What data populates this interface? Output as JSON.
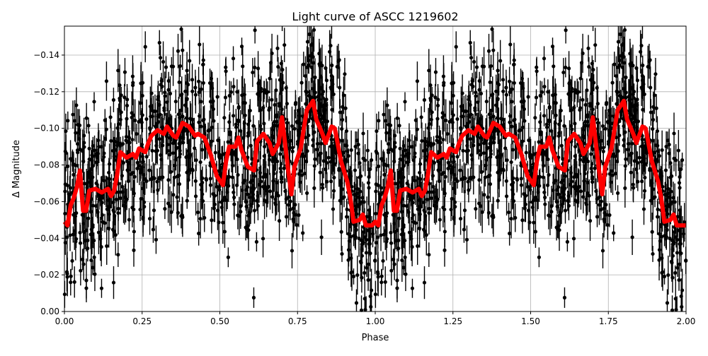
{
  "chart_data": {
    "type": "scatter",
    "title": "Light curve of ASCC 1219602",
    "xlabel": "Phase",
    "ylabel": "Δ Magnitude",
    "xlim": [
      0,
      2
    ],
    "ylim": [
      0,
      -0.1558
    ],
    "y_inverted": true,
    "grid": true,
    "xticks": [
      "0.00",
      "0.25",
      "0.50",
      "0.75",
      "1.00",
      "1.25",
      "1.50",
      "1.75",
      "2.00"
    ],
    "yticks": [
      "0.00",
      "−0.02",
      "−0.04",
      "−0.06",
      "−0.08",
      "−0.10",
      "−0.12",
      "−0.14"
    ],
    "xtick_values": [
      0,
      0.25,
      0.5,
      0.75,
      1,
      1.25,
      1.5,
      1.75,
      2
    ],
    "ytick_values": [
      0,
      -0.02,
      -0.04,
      -0.06,
      -0.08,
      -0.1,
      -0.12,
      -0.14
    ],
    "points_color": "#000000",
    "binned_curve": {
      "color": "#ff0000",
      "phase_values": [
        [
          0.0,
          -0.049
        ],
        [
          0.01,
          -0.047
        ],
        [
          0.02,
          -0.058
        ],
        [
          0.03,
          -0.062
        ],
        [
          0.04,
          -0.068
        ],
        [
          0.05,
          -0.077
        ],
        [
          0.06,
          -0.055
        ],
        [
          0.07,
          -0.055
        ],
        [
          0.08,
          -0.066
        ],
        [
          0.1,
          -0.067
        ],
        [
          0.12,
          -0.065
        ],
        [
          0.14,
          -0.067
        ],
        [
          0.15,
          -0.063
        ],
        [
          0.16,
          -0.066
        ],
        [
          0.17,
          -0.075
        ],
        [
          0.18,
          -0.087
        ],
        [
          0.2,
          -0.084
        ],
        [
          0.22,
          -0.086
        ],
        [
          0.23,
          -0.084
        ],
        [
          0.24,
          -0.089
        ],
        [
          0.26,
          -0.087
        ],
        [
          0.27,
          -0.092
        ],
        [
          0.28,
          -0.096
        ],
        [
          0.3,
          -0.099
        ],
        [
          0.32,
          -0.097
        ],
        [
          0.33,
          -0.101
        ],
        [
          0.35,
          -0.096
        ],
        [
          0.36,
          -0.095
        ],
        [
          0.38,
          -0.103
        ],
        [
          0.4,
          -0.101
        ],
        [
          0.42,
          -0.096
        ],
        [
          0.43,
          -0.097
        ],
        [
          0.45,
          -0.095
        ],
        [
          0.47,
          -0.086
        ],
        [
          0.49,
          -0.074
        ],
        [
          0.51,
          -0.069
        ],
        [
          0.52,
          -0.082
        ],
        [
          0.53,
          -0.09
        ],
        [
          0.55,
          -0.09
        ],
        [
          0.56,
          -0.095
        ],
        [
          0.57,
          -0.088
        ],
        [
          0.59,
          -0.079
        ],
        [
          0.61,
          -0.077
        ],
        [
          0.62,
          -0.093
        ],
        [
          0.64,
          -0.097
        ],
        [
          0.66,
          -0.092
        ],
        [
          0.67,
          -0.086
        ],
        [
          0.69,
          -0.092
        ],
        [
          0.7,
          -0.106
        ],
        [
          0.72,
          -0.077
        ],
        [
          0.73,
          -0.064
        ],
        [
          0.74,
          -0.079
        ],
        [
          0.76,
          -0.089
        ],
        [
          0.78,
          -0.11
        ],
        [
          0.8,
          -0.115
        ],
        [
          0.81,
          -0.105
        ],
        [
          0.83,
          -0.097
        ],
        [
          0.84,
          -0.092
        ],
        [
          0.86,
          -0.101
        ],
        [
          0.87,
          -0.1
        ],
        [
          0.89,
          -0.082
        ],
        [
          0.91,
          -0.071
        ],
        [
          0.92,
          -0.062
        ],
        [
          0.93,
          -0.049
        ],
        [
          0.95,
          -0.05
        ],
        [
          0.96,
          -0.053
        ],
        [
          0.97,
          -0.047
        ],
        [
          0.99,
          -0.047
        ],
        [
          1.0,
          -0.049
        ],
        [
          1.01,
          -0.047
        ],
        [
          1.02,
          -0.058
        ],
        [
          1.03,
          -0.062
        ],
        [
          1.04,
          -0.068
        ],
        [
          1.05,
          -0.077
        ],
        [
          1.06,
          -0.055
        ],
        [
          1.07,
          -0.055
        ],
        [
          1.08,
          -0.066
        ],
        [
          1.1,
          -0.067
        ],
        [
          1.12,
          -0.065
        ],
        [
          1.14,
          -0.067
        ],
        [
          1.15,
          -0.063
        ],
        [
          1.16,
          -0.066
        ],
        [
          1.17,
          -0.075
        ],
        [
          1.18,
          -0.087
        ],
        [
          1.2,
          -0.084
        ],
        [
          1.22,
          -0.086
        ],
        [
          1.23,
          -0.084
        ],
        [
          1.24,
          -0.089
        ],
        [
          1.26,
          -0.087
        ],
        [
          1.27,
          -0.092
        ],
        [
          1.28,
          -0.096
        ],
        [
          1.3,
          -0.099
        ],
        [
          1.32,
          -0.097
        ],
        [
          1.33,
          -0.101
        ],
        [
          1.35,
          -0.096
        ],
        [
          1.36,
          -0.095
        ],
        [
          1.38,
          -0.103
        ],
        [
          1.4,
          -0.101
        ],
        [
          1.42,
          -0.096
        ],
        [
          1.43,
          -0.097
        ],
        [
          1.45,
          -0.095
        ],
        [
          1.47,
          -0.086
        ],
        [
          1.49,
          -0.074
        ],
        [
          1.51,
          -0.069
        ],
        [
          1.52,
          -0.082
        ],
        [
          1.53,
          -0.09
        ],
        [
          1.55,
          -0.09
        ],
        [
          1.56,
          -0.095
        ],
        [
          1.57,
          -0.088
        ],
        [
          1.59,
          -0.079
        ],
        [
          1.61,
          -0.077
        ],
        [
          1.62,
          -0.093
        ],
        [
          1.64,
          -0.097
        ],
        [
          1.66,
          -0.092
        ],
        [
          1.67,
          -0.086
        ],
        [
          1.69,
          -0.092
        ],
        [
          1.7,
          -0.106
        ],
        [
          1.72,
          -0.077
        ],
        [
          1.73,
          -0.064
        ],
        [
          1.74,
          -0.079
        ],
        [
          1.76,
          -0.089
        ],
        [
          1.78,
          -0.11
        ],
        [
          1.8,
          -0.115
        ],
        [
          1.81,
          -0.105
        ],
        [
          1.83,
          -0.097
        ],
        [
          1.84,
          -0.092
        ],
        [
          1.86,
          -0.101
        ],
        [
          1.87,
          -0.1
        ],
        [
          1.89,
          -0.082
        ],
        [
          1.91,
          -0.071
        ],
        [
          1.92,
          -0.062
        ],
        [
          1.93,
          -0.049
        ],
        [
          1.95,
          -0.05
        ],
        [
          1.96,
          -0.053
        ],
        [
          1.97,
          -0.047
        ],
        [
          1.99,
          -0.047
        ],
        [
          2.0,
          -0.047
        ]
      ]
    }
  }
}
